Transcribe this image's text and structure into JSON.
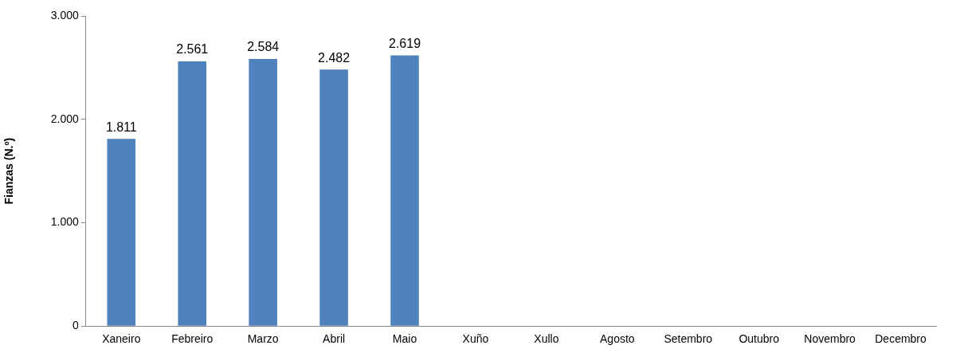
{
  "chart_data": {
    "type": "bar",
    "ylabel": "Fianzas (N.º)",
    "categories": [
      "Xaneiro",
      "Febreiro",
      "Marzo",
      "Abril",
      "Maio",
      "Xuño",
      "Xullo",
      "Agosto",
      "Setembro",
      "Outubro",
      "Novembro",
      "Decembro"
    ],
    "values": [
      1811,
      2561,
      2584,
      2482,
      2619,
      null,
      null,
      null,
      null,
      null,
      null,
      null
    ],
    "value_labels": [
      "1.811",
      "2.561",
      "2.584",
      "2.482",
      "2.619",
      null,
      null,
      null,
      null,
      null,
      null,
      null
    ],
    "color": "#4f81bd",
    "ylim": [
      0,
      3000
    ],
    "yticks": [
      {
        "value": 0,
        "label": "0"
      },
      {
        "value": 1000,
        "label": "1.000"
      },
      {
        "value": 2000,
        "label": "2.000"
      },
      {
        "value": 3000,
        "label": "3.000"
      }
    ],
    "grid": false,
    "legend": false
  }
}
